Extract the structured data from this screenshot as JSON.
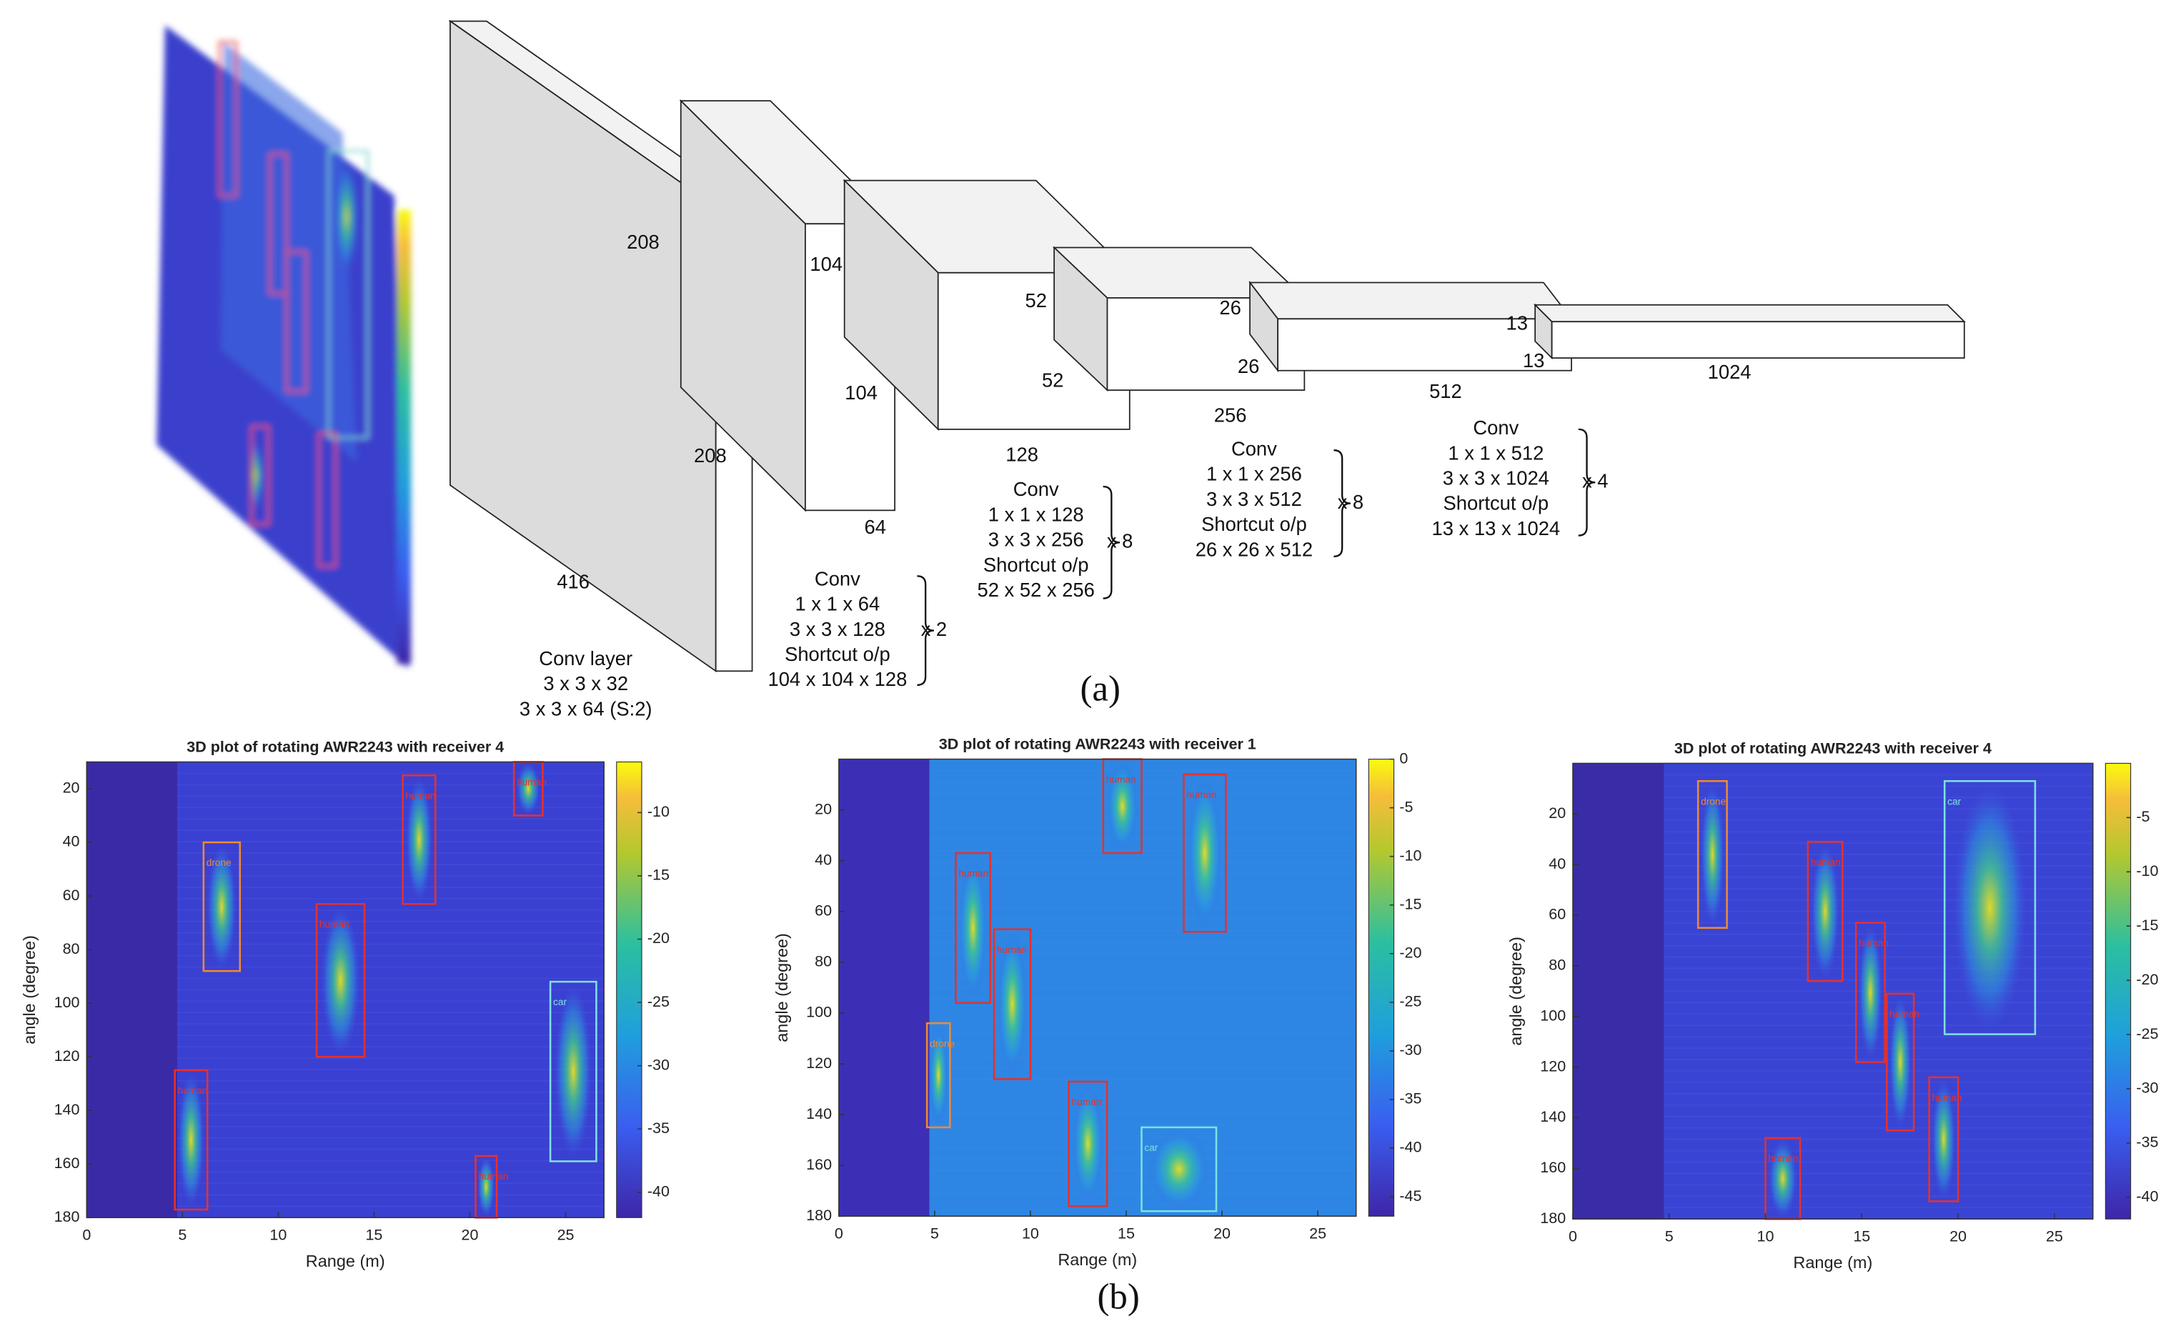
{
  "diagram": {
    "dims": [
      "208",
      "416",
      "208",
      "104",
      "104",
      "64",
      "52",
      "52",
      "128",
      "26",
      "26",
      "256",
      "13",
      "13",
      "512",
      "1024"
    ],
    "first_layer": [
      "Conv layer",
      "3 x 3 x 32",
      "3 x 3 x 64 (S:2)"
    ],
    "blocks": [
      {
        "lines": [
          "Conv",
          "1 x 1 x 64",
          "3 x 3 x 128",
          "Shortcut o/p",
          "104 x 104 x 128"
        ],
        "repeat": "x 2"
      },
      {
        "lines": [
          "Conv",
          "1 x 1 x 128",
          "3 x 3 x 256",
          "Shortcut o/p",
          "52 x 52 x 256"
        ],
        "repeat": "x 8"
      },
      {
        "lines": [
          "Conv",
          "1 x 1 x 256",
          "3 x 3 x 512",
          "Shortcut o/p",
          "26 x 26 x 512"
        ],
        "repeat": "x 8"
      },
      {
        "lines": [
          "Conv",
          "1 x 1 x 512",
          "3 x 3 x 1024",
          "Shortcut o/p",
          "13 x 13 x 1024"
        ],
        "repeat": "x 4"
      }
    ],
    "caption": "(a)"
  },
  "chart_data": [
    {
      "type": "heatmap",
      "title": "3D plot of rotating AWR2243 with receiver 4",
      "xlabel": "Range (m)",
      "ylabel": "angle (degree)",
      "xlim": [
        0,
        27
      ],
      "xticks": [
        0,
        5,
        10,
        15,
        20,
        25
      ],
      "ylim": [
        10,
        180
      ],
      "yticks": [
        20,
        40,
        60,
        80,
        100,
        120,
        140,
        160,
        180
      ],
      "yreverse": true,
      "clim": [
        -42,
        -6
      ],
      "cticks": [
        -10,
        -15,
        -20,
        -25,
        -30,
        -35,
        -40
      ],
      "background": "#3a40d2",
      "band": "#3b2aa6",
      "boxes": [
        {
          "label": "drone",
          "color": "#f08a30",
          "x": [
            6.1,
            8.0
          ],
          "y": [
            40,
            88
          ]
        },
        {
          "label": "human",
          "color": "#e8302a",
          "x": [
            12.0,
            14.5
          ],
          "y": [
            63,
            120
          ]
        },
        {
          "label": "human",
          "color": "#e8302a",
          "x": [
            16.5,
            18.2
          ],
          "y": [
            15,
            63
          ]
        },
        {
          "label": "human",
          "color": "#e8302a",
          "x": [
            22.3,
            23.8
          ],
          "y": [
            10,
            30
          ]
        },
        {
          "label": "car",
          "color": "#7fe0e0",
          "x": [
            24.2,
            26.6
          ],
          "y": [
            92,
            159
          ]
        },
        {
          "label": "human",
          "color": "#e8302a",
          "x": [
            4.6,
            6.3
          ],
          "y": [
            125,
            177
          ]
        },
        {
          "label": "human",
          "color": "#e8302a",
          "x": [
            20.3,
            21.4
          ],
          "y": [
            157,
            180
          ]
        }
      ]
    },
    {
      "type": "heatmap",
      "title": "3D plot of rotating AWR2243 with receiver 1",
      "xlabel": "Range (m)",
      "ylabel": "angle (degree)",
      "xlim": [
        0,
        27
      ],
      "xticks": [
        0,
        5,
        10,
        15,
        20,
        25
      ],
      "ylim": [
        0,
        180
      ],
      "yticks": [
        20,
        40,
        60,
        80,
        100,
        120,
        140,
        160,
        180
      ],
      "yreverse": true,
      "clim": [
        -47,
        0
      ],
      "cticks": [
        0,
        -5,
        -10,
        -15,
        -20,
        -25,
        -30,
        -35,
        -40,
        -45
      ],
      "background": "#2d86e4",
      "band": "#3c2fb6",
      "boxes": [
        {
          "label": "human",
          "color": "#e8302a",
          "x": [
            13.8,
            15.8
          ],
          "y": [
            0,
            37
          ]
        },
        {
          "label": "human",
          "color": "#e8302a",
          "x": [
            18.0,
            20.2
          ],
          "y": [
            6,
            68
          ]
        },
        {
          "label": "human",
          "color": "#e8302a",
          "x": [
            6.1,
            7.9
          ],
          "y": [
            37,
            96
          ]
        },
        {
          "label": "human",
          "color": "#e8302a",
          "x": [
            8.1,
            10.0
          ],
          "y": [
            67,
            126
          ]
        },
        {
          "label": "drone",
          "color": "#f08a30",
          "x": [
            4.6,
            5.8
          ],
          "y": [
            104,
            145
          ]
        },
        {
          "label": "human",
          "color": "#e8302a",
          "x": [
            12.0,
            14.0
          ],
          "y": [
            127,
            176
          ]
        },
        {
          "label": "car",
          "color": "#7fe0e0",
          "x": [
            15.8,
            19.7
          ],
          "y": [
            145,
            178
          ]
        }
      ]
    },
    {
      "type": "heatmap",
      "title": "3D plot of rotating AWR2243 with receiver 4",
      "xlabel": "Range (m)",
      "ylabel": "angle (degree)",
      "xlim": [
        0,
        27
      ],
      "xticks": [
        0,
        5,
        10,
        15,
        20,
        25
      ],
      "ylim": [
        0,
        180
      ],
      "yticks": [
        20,
        40,
        60,
        80,
        100,
        120,
        140,
        160,
        180
      ],
      "yreverse": true,
      "clim": [
        -42,
        0
      ],
      "cticks": [
        -5,
        -10,
        -15,
        -20,
        -25,
        -30,
        -35,
        -40
      ],
      "background": "#3a44d4",
      "band": "#3a2ca6",
      "boxes": [
        {
          "label": "drone",
          "color": "#f08a30",
          "x": [
            6.5,
            8.0
          ],
          "y": [
            7,
            65
          ]
        },
        {
          "label": "human",
          "color": "#e8302a",
          "x": [
            12.2,
            14.0
          ],
          "y": [
            31,
            86
          ]
        },
        {
          "label": "human",
          "color": "#e8302a",
          "x": [
            14.7,
            16.2
          ],
          "y": [
            63,
            118
          ]
        },
        {
          "label": "human",
          "color": "#e8302a",
          "x": [
            16.3,
            17.7
          ],
          "y": [
            91,
            145
          ]
        },
        {
          "label": "human",
          "color": "#e8302a",
          "x": [
            18.5,
            20.0
          ],
          "y": [
            124,
            173
          ]
        },
        {
          "label": "human",
          "color": "#e8302a",
          "x": [
            10.0,
            11.8
          ],
          "y": [
            148,
            180
          ]
        },
        {
          "label": "car",
          "color": "#7fe0e0",
          "x": [
            19.3,
            24.0
          ],
          "y": [
            7,
            107
          ]
        }
      ]
    }
  ],
  "caption_b": "(b)"
}
